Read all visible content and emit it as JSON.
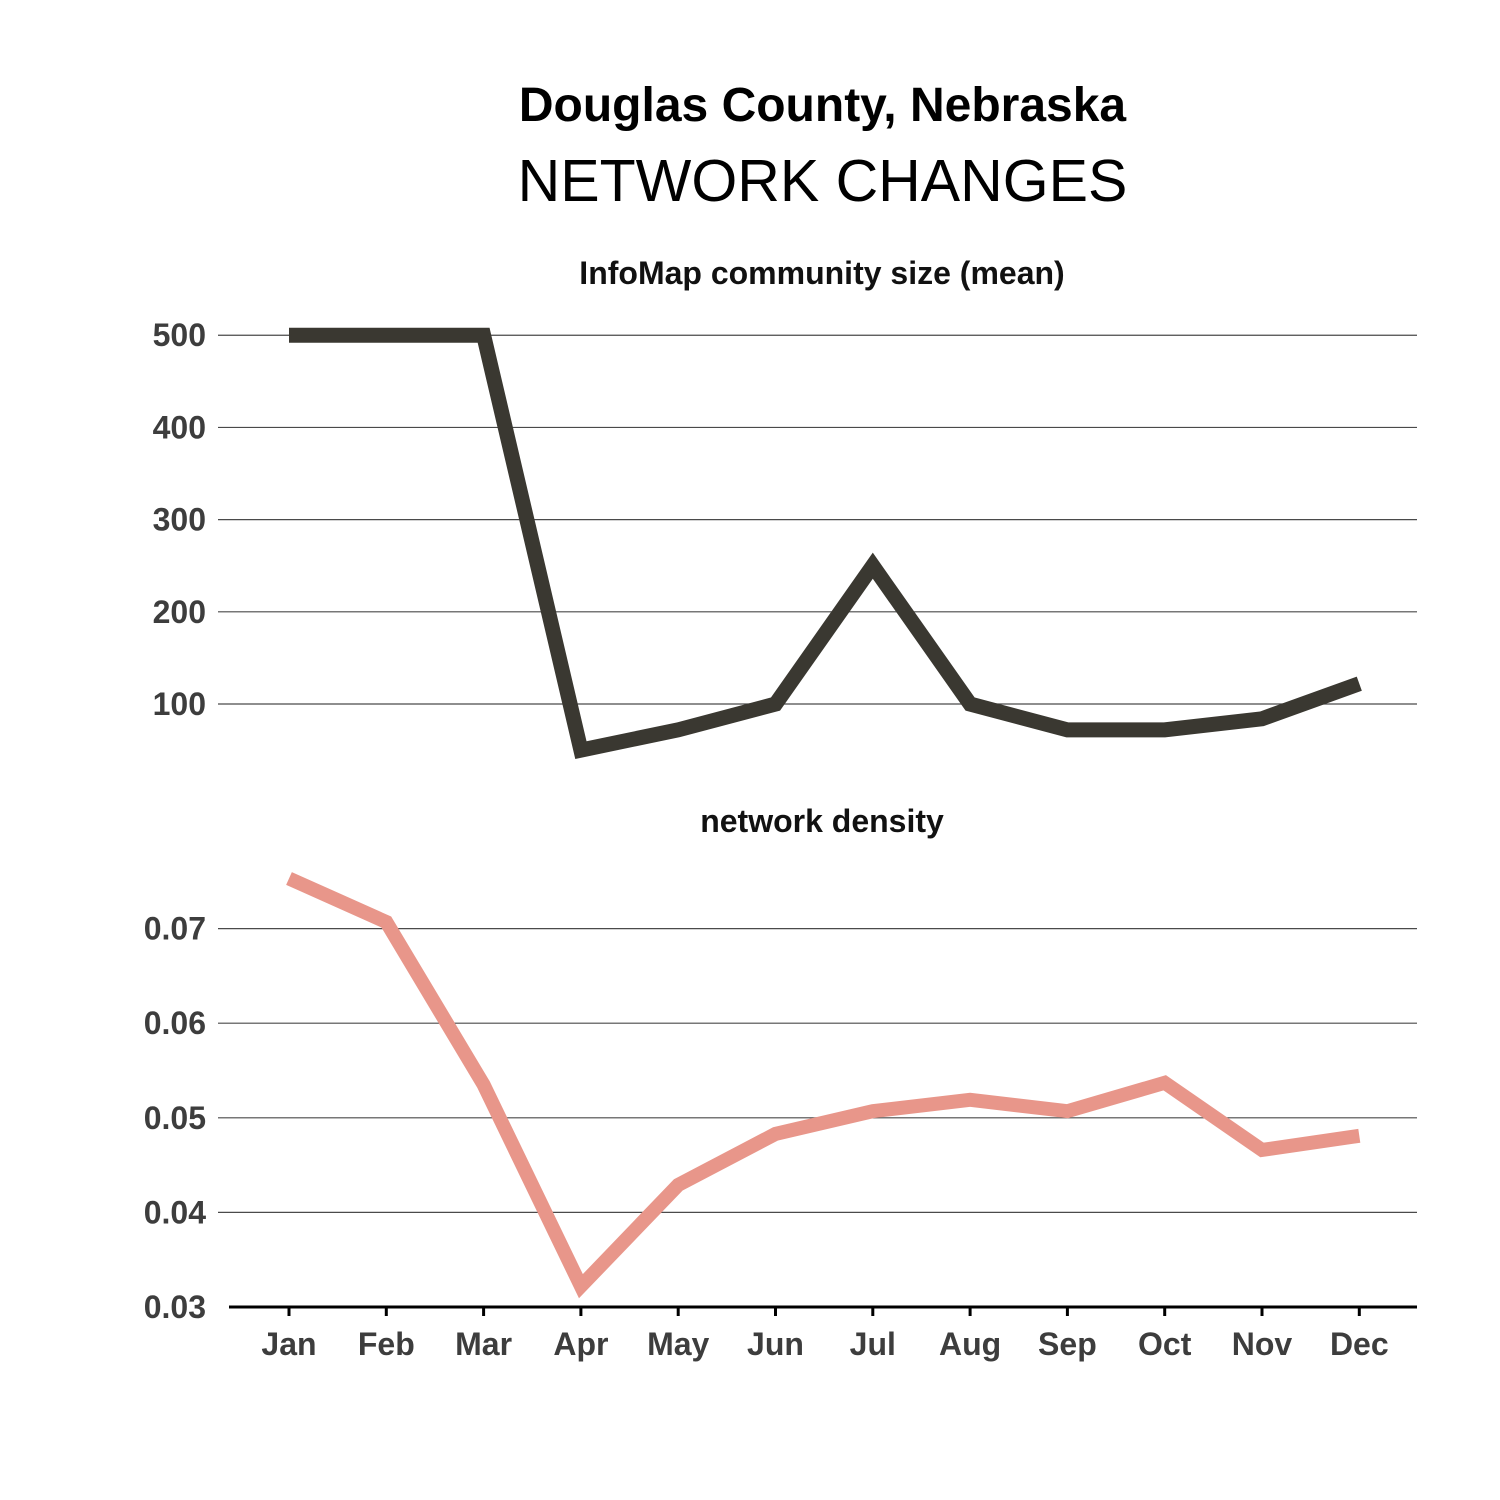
{
  "title": "Douglas County, Nebraska",
  "subtitle": "NETWORK CHANGES",
  "chart_data": [
    {
      "type": "line",
      "title": "InfoMap community size (mean)",
      "xlabel": "",
      "ylabel": "",
      "categories": [
        "Jan",
        "Feb",
        "Mar",
        "Apr",
        "May",
        "Jun",
        "Jul",
        "Aug",
        "Sep",
        "Oct",
        "Nov",
        "Dec"
      ],
      "series": [
        {
          "values": [
            500,
            500,
            500,
            50,
            72,
            100,
            250,
            100,
            72,
            72,
            84,
            122
          ],
          "color": "#3a3831"
        }
      ],
      "yticks": [
        "100",
        "200",
        "300",
        "400",
        "500"
      ],
      "ylim": [
        10,
        510
      ],
      "grid": true
    },
    {
      "type": "line",
      "title": "network density",
      "xlabel": "",
      "ylabel": "",
      "categories": [
        "Jan",
        "Feb",
        "Mar",
        "Apr",
        "May",
        "Jun",
        "Jul",
        "Aug",
        "Sep",
        "Oct",
        "Nov",
        "Dec"
      ],
      "series": [
        {
          "values": [
            0.0753,
            0.0707,
            0.0535,
            0.0322,
            0.0429,
            0.0483,
            0.0507,
            0.0519,
            0.0507,
            0.0537,
            0.0466,
            0.0481
          ],
          "color": "#e8968a"
        }
      ],
      "yticks": [
        "0.03",
        "0.04",
        "0.05",
        "0.06",
        "0.07"
      ],
      "ylim": [
        0.03,
        0.08
      ],
      "grid": true
    }
  ]
}
